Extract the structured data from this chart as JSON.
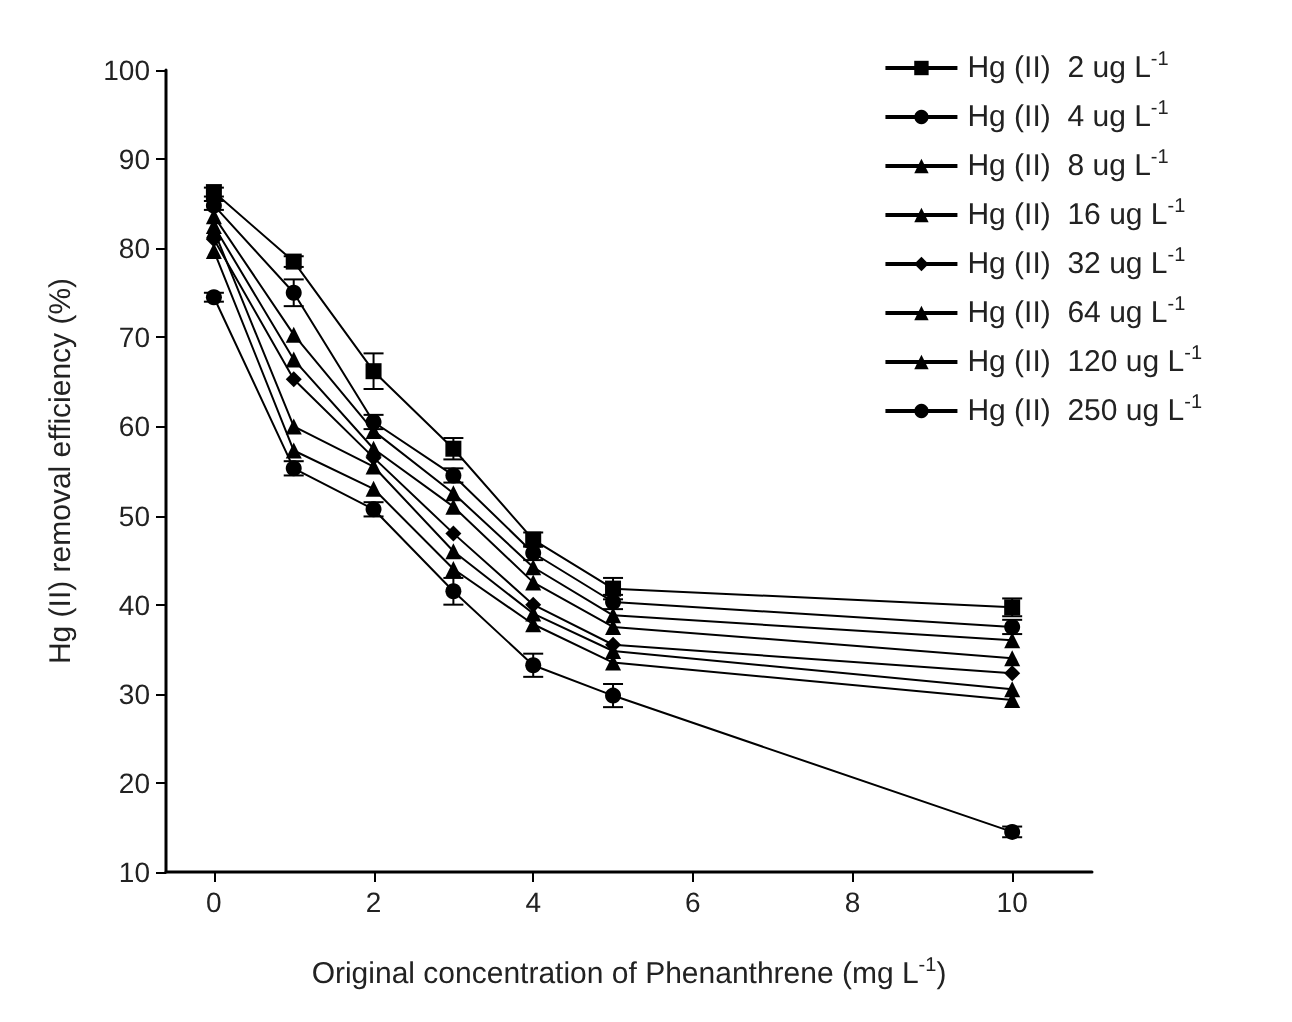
{
  "chart_data": {
    "type": "line",
    "xlabel": "Original concentration of Phenanthrene (mg L$^{-1}$)",
    "ylabel": "Hg (II) removal efficiency (%)",
    "x": [
      0,
      1,
      2,
      3,
      4,
      5,
      10
    ],
    "xlim": [
      -0.6,
      11
    ],
    "xticks": [
      0,
      2,
      4,
      6,
      8,
      10
    ],
    "ylim": [
      10,
      100
    ],
    "yticks": [
      10,
      20,
      30,
      40,
      50,
      60,
      70,
      80,
      90,
      100
    ],
    "grid": false,
    "legend": "top right",
    "line_style": "solid",
    "series": [
      {
        "name": "Hg (II)  2 ug L$^{-1}$",
        "color": "#000000",
        "marker": "square",
        "values": [
          86.3,
          78.5,
          66.2,
          57.5,
          47.3,
          41.8,
          39.7
        ],
        "errors": [
          0.5,
          0.6,
          2,
          1.2,
          0.8,
          1.2,
          1
        ]
      },
      {
        "name": "Hg (II)  4 ug L$^{-1}$",
        "color": "#000000",
        "marker": "circle",
        "values": [
          84.8,
          75,
          60.5,
          54.5,
          45.8,
          40.3,
          37.5
        ],
        "errors": [
          0.5,
          1.5,
          0.8,
          0.8,
          0.8,
          0.8,
          0.8
        ]
      },
      {
        "name": "Hg (II)  8 ug L$^{-1}$",
        "color": "#000000",
        "marker": "triangle",
        "values": [
          83.6,
          70.3,
          59.5,
          52.5,
          44.2,
          38.8,
          36
        ]
      },
      {
        "name": "Hg (II)  16 ug L$^{-1}$",
        "color": "#000000",
        "marker": "triangle",
        "values": [
          82.5,
          67.5,
          57.5,
          51,
          42.5,
          37.5,
          34
        ]
      },
      {
        "name": "Hg (II)  32 ug L$^{-1}$",
        "color": "#000000",
        "marker": "diamond",
        "values": [
          81,
          65.3,
          56.5,
          48,
          40,
          35.5,
          32.3
        ]
      },
      {
        "name": "Hg (II)  64 ug L$^{-1}$",
        "color": "#000000",
        "marker": "triangle",
        "values": [
          82,
          60,
          55.5,
          46,
          39,
          34.8,
          30.5
        ]
      },
      {
        "name": "Hg (II)  120 ug L$^{-1}$",
        "color": "#000000",
        "marker": "triangle",
        "values": [
          79.7,
          57.3,
          53,
          44,
          37.8,
          33.5,
          29.3
        ]
      },
      {
        "name": "Hg (II)  250 ug L$^{-1}$",
        "color": "#000000",
        "marker": "circle",
        "values": [
          74.5,
          55.3,
          50.7,
          41.5,
          33.2,
          29.8,
          14.5
        ],
        "errors": [
          0.5,
          0.8,
          0.8,
          1.5,
          1.3,
          1.3,
          0.6
        ]
      }
    ]
  }
}
